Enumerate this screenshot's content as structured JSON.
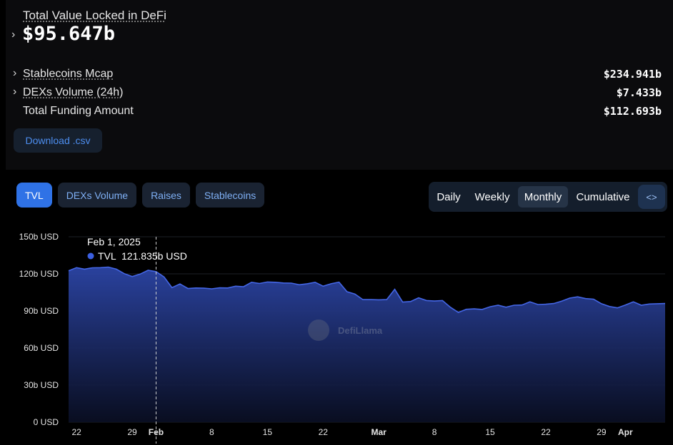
{
  "summary": {
    "title": "Total Value Locked in DeFi",
    "value": "$95.647b",
    "rows": [
      {
        "label": "Stablecoins Mcap",
        "value": "$234.941b"
      },
      {
        "label": "DEXs Volume (24h)",
        "value": "$7.433b"
      },
      {
        "label": "Total Funding Amount",
        "value": "$112.693b"
      }
    ],
    "download_label": "Download .csv"
  },
  "tabs": [
    "TVL",
    "DEXs Volume",
    "Raises",
    "Stablecoins"
  ],
  "periods": [
    "Daily",
    "Weekly",
    "Monthly",
    "Cumulative"
  ],
  "active_period": "Monthly",
  "embed_icon": "<>",
  "tooltip": {
    "date": "Feb 1, 2025",
    "series": "TVL",
    "value": "121.835b USD"
  },
  "watermark": "DefiLlama",
  "colors": {
    "accent": "#2f72e6",
    "series": "#3b5fe0",
    "link": "#4d8ef0"
  },
  "chart_data": {
    "type": "area",
    "y_unit": "USD",
    "ylim": [
      0,
      150
    ],
    "y_ticks": [
      "0 USD",
      "30b USD",
      "60b USD",
      "90b USD",
      "120b USD",
      "150b USD"
    ],
    "x_ticks": [
      "22",
      "29",
      "Feb",
      "8",
      "15",
      "22",
      "Mar",
      "8",
      "15",
      "22",
      "29",
      "Apr"
    ],
    "series": [
      {
        "name": "TVL",
        "x": [
          "2025-01-21",
          "2025-01-22",
          "2025-01-23",
          "2025-01-24",
          "2025-01-25",
          "2025-01-26",
          "2025-01-27",
          "2025-01-28",
          "2025-01-29",
          "2025-01-30",
          "2025-01-31",
          "2025-02-01",
          "2025-02-02",
          "2025-02-03",
          "2025-02-04",
          "2025-02-05",
          "2025-02-06",
          "2025-02-07",
          "2025-02-08",
          "2025-02-09",
          "2025-02-10",
          "2025-02-11",
          "2025-02-12",
          "2025-02-13",
          "2025-02-14",
          "2025-02-15",
          "2025-02-16",
          "2025-02-17",
          "2025-02-18",
          "2025-02-19",
          "2025-02-20",
          "2025-02-21",
          "2025-02-22",
          "2025-02-23",
          "2025-02-24",
          "2025-02-25",
          "2025-02-26",
          "2025-02-27",
          "2025-02-28",
          "2025-03-01",
          "2025-03-02",
          "2025-03-03",
          "2025-03-04",
          "2025-03-05",
          "2025-03-06",
          "2025-03-07",
          "2025-03-08",
          "2025-03-09",
          "2025-03-10",
          "2025-03-11",
          "2025-03-12",
          "2025-03-13",
          "2025-03-14",
          "2025-03-15",
          "2025-03-16",
          "2025-03-17",
          "2025-03-18",
          "2025-03-19",
          "2025-03-20",
          "2025-03-21",
          "2025-03-22",
          "2025-03-23",
          "2025-03-24",
          "2025-03-25",
          "2025-03-26",
          "2025-03-27",
          "2025-03-28",
          "2025-03-29",
          "2025-03-30",
          "2025-03-31",
          "2025-04-01",
          "2025-04-02",
          "2025-04-03",
          "2025-04-04",
          "2025-04-05",
          "2025-04-06"
        ],
        "values": [
          122.5,
          125.0,
          123.8,
          124.9,
          125.0,
          125.5,
          123.8,
          120.2,
          117.8,
          119.8,
          122.9,
          121.8,
          117.5,
          108.8,
          111.8,
          108.2,
          108.6,
          108.4,
          107.9,
          108.7,
          108.6,
          110.0,
          109.6,
          113.2,
          112.2,
          113.4,
          113.2,
          112.6,
          112.5,
          111.2,
          112.0,
          113.2,
          110.0,
          112.0,
          113.3,
          105.6,
          103.6,
          99.2,
          99.2,
          99.0,
          99.2,
          107.5,
          97.2,
          97.6,
          100.6,
          98.4,
          98.0,
          98.4,
          93.0,
          88.8,
          91.3,
          91.7,
          91.2,
          93.4,
          94.6,
          93.0,
          94.6,
          94.8,
          97.4,
          95.2,
          95.4,
          96.0,
          97.9,
          100.4,
          101.4,
          100.0,
          99.5,
          95.8,
          93.6,
          92.5,
          94.8,
          97.4,
          94.6,
          95.6,
          95.8,
          96.0
        ]
      }
    ]
  }
}
